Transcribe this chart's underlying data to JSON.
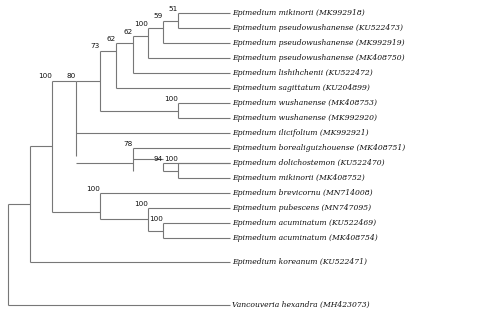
{
  "taxa": [
    "Epimedium mikinorii (MK992918)",
    "Epimedium pseudowushanense (KU522473)",
    "Epimedium pseudowushanense (MK992919)",
    "Epimedium pseudowushanense (MK408750)",
    "Epimedium lishihchenii (KU522472)",
    "Epimedium sagittatum (KU204899)",
    "Epimedium wushanense (MK408753)",
    "Epimedium wushanense (MK992920)",
    "Epimedium ilicifolium (MK992921)",
    "Epimedium borealiguizhouense (MK408751)",
    "Epimedium dolichostemon (KU522470)",
    "Epimedium mikinorii (MK408752)",
    "Epimedium brevicornu (MN714008)",
    "Epimedium pubescens (MN747095)",
    "Epimedium acuminatum (KU522469)",
    "Epimedium acuminatum (MK408754)",
    "Epimedium koreanum (KU522471)",
    "Vancouveria hexandra (MH423073)"
  ],
  "bg": "#ffffff",
  "lc": "#777777",
  "tc": "#111111",
  "lw": 0.8,
  "fs": 5.5,
  "bfs": 5.2
}
